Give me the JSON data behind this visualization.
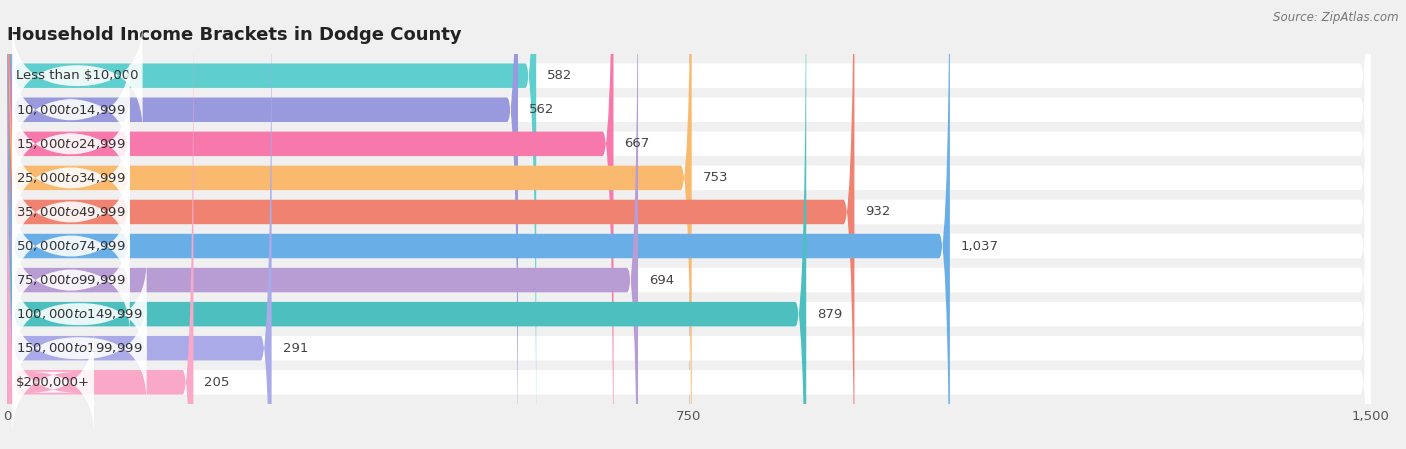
{
  "title": "Household Income Brackets in Dodge County",
  "source": "Source: ZipAtlas.com",
  "categories": [
    "Less than $10,000",
    "$10,000 to $14,999",
    "$15,000 to $24,999",
    "$25,000 to $34,999",
    "$35,000 to $49,999",
    "$50,000 to $74,999",
    "$75,000 to $99,999",
    "$100,000 to $149,999",
    "$150,000 to $199,999",
    "$200,000+"
  ],
  "values": [
    582,
    562,
    667,
    753,
    932,
    1037,
    694,
    879,
    291,
    205
  ],
  "bar_colors": [
    "#5ECECE",
    "#9999DD",
    "#F778AA",
    "#F9B96E",
    "#F08272",
    "#6AAEE8",
    "#B89DD4",
    "#4DBFBF",
    "#AAAAE8",
    "#F9A8C8"
  ],
  "xlim": [
    0,
    1500
  ],
  "xticks": [
    0,
    750,
    1500
  ],
  "bg_color": "#f0f0f0",
  "row_bg_color": "#ffffff",
  "title_fontsize": 13,
  "label_fontsize": 9.5,
  "value_fontsize": 9.5,
  "tick_fontsize": 9.5
}
